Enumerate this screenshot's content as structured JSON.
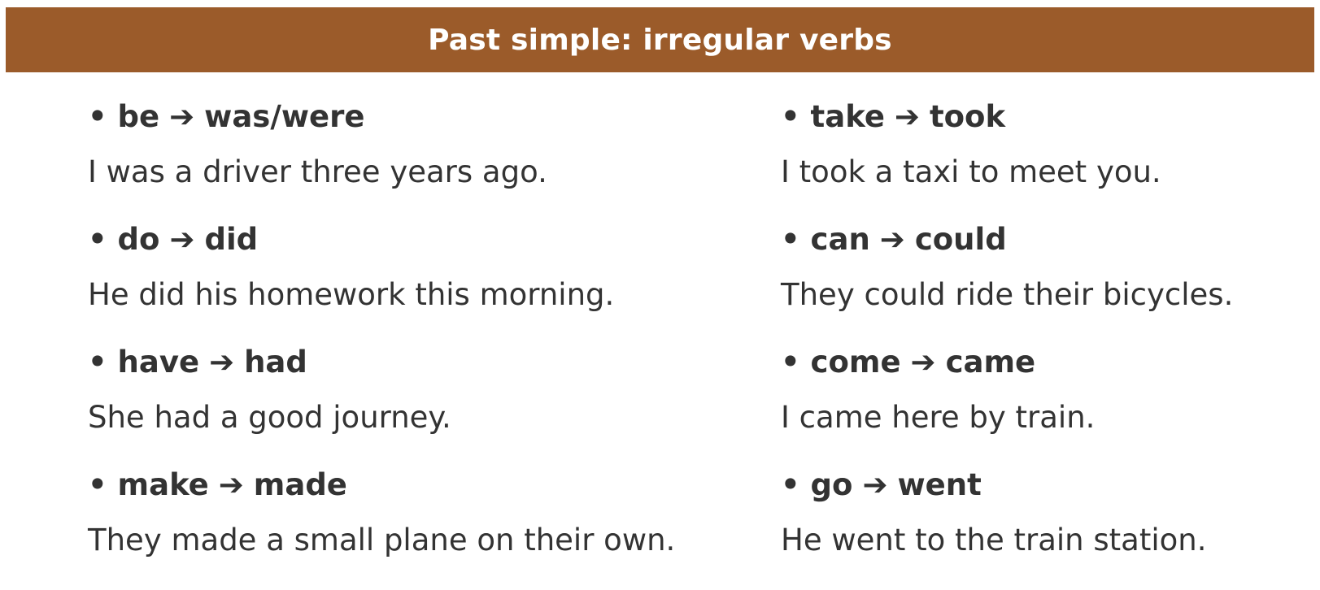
{
  "header": {
    "title": "Past simple: irregular verbs",
    "background_color": "#9b5b2a"
  },
  "arrow_glyph": "➔",
  "bullet_glyph": "•",
  "left_column": [
    {
      "base": "be",
      "past": "was/were",
      "example": "I was a driver three years ago."
    },
    {
      "base": "do",
      "past": "did",
      "example": "He did his homework this morning."
    },
    {
      "base": "have",
      "past": "had",
      "example": "She had a good journey."
    },
    {
      "base": "make",
      "past": "made",
      "example": "They made a small plane on their own."
    }
  ],
  "right_column": [
    {
      "base": "take",
      "past": "took",
      "example": "I took a taxi to meet you."
    },
    {
      "base": "can",
      "past": "could",
      "example": "They could ride their bicycles."
    },
    {
      "base": "come",
      "past": "came",
      "example": "I came here by train."
    },
    {
      "base": "go",
      "past": "went",
      "example": "He went to the train station."
    }
  ]
}
